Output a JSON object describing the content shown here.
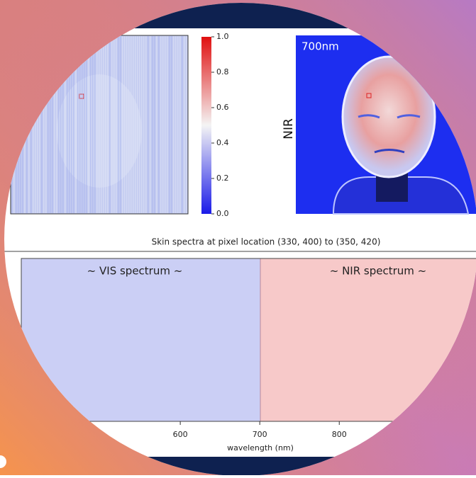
{
  "left_panel": {
    "colorbar": {
      "lim": [
        0,
        1
      ],
      "ticks": [
        {
          "value": 1,
          "label": "1.0"
        },
        0.8,
        0.6,
        0.4,
        0.2,
        {
          "value": 0,
          "label": "0.0"
        }
      ]
    }
  },
  "right_panel": {
    "ylabel": "NIR",
    "band_label": "700nm"
  },
  "spectrum_plot": {
    "title": "Skin spectra at pixel location (330, 400) to (350, 420)",
    "annotations": [
      "~ VIS spectrum ~",
      "~ NIR spectrum ~"
    ],
    "xlabel": "wavelength (nm)",
    "xlim": [
      400,
      972
    ],
    "xticks": [
      600,
      700,
      800
    ]
  }
}
